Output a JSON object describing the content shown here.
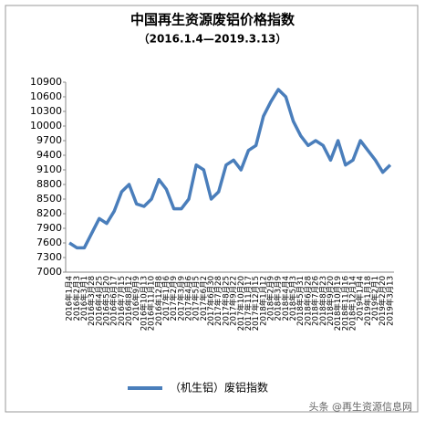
{
  "chart_data": {
    "type": "line",
    "title": "中国再生资源废铝价格指数",
    "subtitle": "（2016.1.4—2019.3.13）",
    "categories": [
      "2016年1月4",
      "2016年2月3",
      "2016年3月1",
      "2016年3月28",
      "2016年4月25",
      "2016年5月20",
      "2016年6月17",
      "2016年7月15",
      "2016年8月12",
      "2016年9月9",
      "2016年10月13",
      "2016年11月10",
      "2016年12月8",
      "2017年1月6",
      "2017年2月9",
      "2017年3月9",
      "2017年4月6",
      "2017年5月5",
      "2017年6月2",
      "2017年6月30",
      "2017年7月28",
      "2017年8月25",
      "2017年9月22",
      "2017年10月20",
      "2017年11月17",
      "2017年12月15",
      "2018年1月12",
      "2018年2月9",
      "2018年3月9",
      "2018年4月4",
      "2018年5月3",
      "2018年5月31",
      "2018年6月28",
      "2018年7月26",
      "2018年8月23",
      "2018年9月20",
      "2018年10月19",
      "2018年11月16",
      "2018年12月14",
      "2019年1月4",
      "2019年1月18",
      "2019年2月1",
      "2019年2月20",
      "2019年3月13"
    ],
    "series": [
      {
        "name": "（机生铝）废铝指数",
        "color": "#4a7ebb",
        "values": [
          7600,
          7500,
          7500,
          7800,
          8100,
          8000,
          8250,
          8650,
          8800,
          8400,
          8350,
          8500,
          8900,
          8700,
          8300,
          8300,
          8500,
          9200,
          9100,
          8500,
          8650,
          9200,
          9300,
          9100,
          9500,
          9600,
          10200,
          10500,
          10750,
          10600,
          10100,
          9800,
          9600,
          9700,
          9600,
          9300,
          9700,
          9200,
          9300,
          9700,
          9500,
          9300,
          9050,
          9200
        ]
      }
    ],
    "ylim": [
      7000,
      10900
    ],
    "yticks": [
      7000,
      7300,
      7600,
      7900,
      8200,
      8500,
      8800,
      9100,
      9400,
      9700,
      10000,
      10300,
      10600,
      10900
    ],
    "watermark": "头条 @再生资源信息网"
  }
}
